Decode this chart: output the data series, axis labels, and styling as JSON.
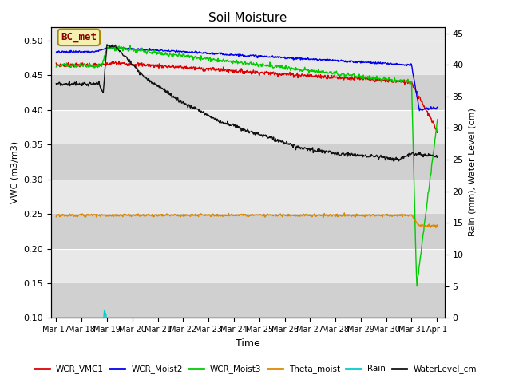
{
  "title": "Soil Moisture",
  "xlabel": "Time",
  "ylabel_left": "VWC (m3/m3)",
  "ylabel_right": "Rain (mm), Water Level (cm)",
  "ylim_left": [
    0.1,
    0.52
  ],
  "ylim_right": [
    0,
    46
  ],
  "yticks_left": [
    0.1,
    0.15,
    0.2,
    0.25,
    0.3,
    0.35,
    0.4,
    0.45,
    0.5
  ],
  "yticks_right": [
    0,
    5,
    10,
    15,
    20,
    25,
    30,
    35,
    40,
    45
  ],
  "xtick_labels": [
    "Mar 17",
    "Mar 18",
    "Mar 19",
    "Mar 20",
    "Mar 21",
    "Mar 22",
    "Mar 23",
    "Mar 24",
    "Mar 25",
    "Mar 26",
    "Mar 27",
    "Mar 28",
    "Mar 29",
    "Mar 30",
    "Mar 31",
    "Apr 1"
  ],
  "annotation_box": "BC_met",
  "plot_bg": "#e8e8e8",
  "fig_bg": "#ffffff",
  "grid_color": "#ffffff",
  "colors": {
    "WCR_VMC1": "#dd0000",
    "WCR_Moist2": "#0000ee",
    "WCR_Moist3": "#00cc00",
    "Theta_moist": "#dd8800",
    "Rain": "#00cccc",
    "WaterLevel_cm": "#111111"
  },
  "legend_labels": [
    "WCR_VMC1",
    "WCR_Moist2",
    "WCR_Moist3",
    "Theta_moist",
    "Rain",
    "WaterLevel_cm"
  ]
}
